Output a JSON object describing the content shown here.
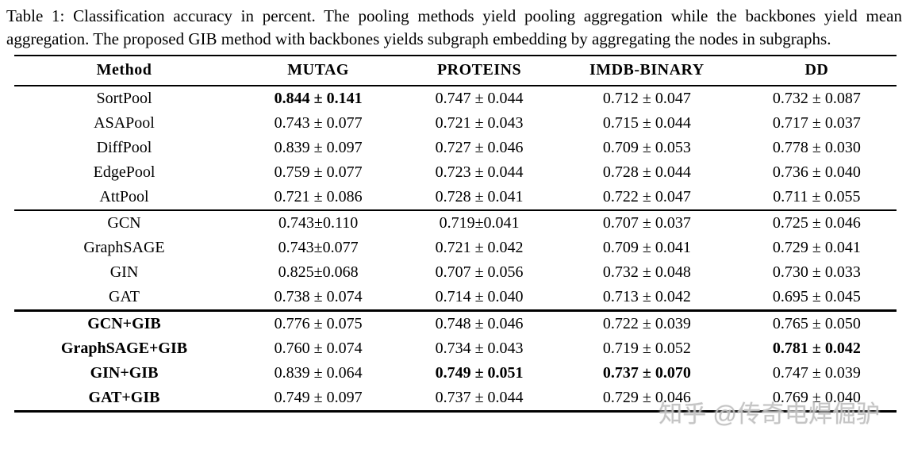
{
  "caption": {
    "label": "Table 1: ",
    "text": "Classification accuracy in percent. The pooling methods yield pooling aggregation while the backbones yield mean aggregation. The proposed GIB method with backbones yields subgraph embedding by aggregating the nodes in subgraphs."
  },
  "table": {
    "headers": [
      "Method",
      "MUTAG",
      "PROTEINS",
      "IMDB-BINARY",
      "DD"
    ],
    "groups": [
      {
        "name": "pooling-methods",
        "rows": [
          {
            "method": "SortPool",
            "method_bold": false,
            "values": [
              "0.844 ± 0.141",
              "0.747 ± 0.044",
              "0.712 ± 0.047",
              "0.732 ± 0.087"
            ],
            "bold": [
              true,
              false,
              false,
              false
            ]
          },
          {
            "method": "ASAPool",
            "method_bold": false,
            "values": [
              "0.743 ± 0.077",
              "0.721 ± 0.043",
              "0.715 ± 0.044",
              "0.717 ± 0.037"
            ],
            "bold": [
              false,
              false,
              false,
              false
            ]
          },
          {
            "method": "DiffPool",
            "method_bold": false,
            "values": [
              "0.839 ± 0.097",
              "0.727 ± 0.046",
              "0.709 ± 0.053",
              "0.778 ± 0.030"
            ],
            "bold": [
              false,
              false,
              false,
              false
            ]
          },
          {
            "method": "EdgePool",
            "method_bold": false,
            "values": [
              "0.759 ± 0.077",
              "0.723 ± 0.044",
              "0.728 ± 0.044",
              "0.736 ± 0.040"
            ],
            "bold": [
              false,
              false,
              false,
              false
            ]
          },
          {
            "method": "AttPool",
            "method_bold": false,
            "values": [
              "0.721 ± 0.086",
              "0.728 ± 0.041",
              "0.722 ± 0.047",
              "0.711 ± 0.055"
            ],
            "bold": [
              false,
              false,
              false,
              false
            ]
          }
        ]
      },
      {
        "name": "backbones",
        "rows": [
          {
            "method": "GCN",
            "method_bold": false,
            "values": [
              "0.743±0.110",
              "0.719±0.041",
              "0.707 ± 0.037",
              "0.725 ± 0.046"
            ],
            "bold": [
              false,
              false,
              false,
              false
            ]
          },
          {
            "method": "GraphSAGE",
            "method_bold": false,
            "values": [
              "0.743±0.077",
              "0.721 ± 0.042",
              "0.709 ± 0.041",
              "0.729 ± 0.041"
            ],
            "bold": [
              false,
              false,
              false,
              false
            ]
          },
          {
            "method": "GIN",
            "method_bold": false,
            "values": [
              "0.825±0.068",
              "0.707 ± 0.056",
              "0.732 ± 0.048",
              "0.730 ± 0.033"
            ],
            "bold": [
              false,
              false,
              false,
              false
            ]
          },
          {
            "method": "GAT",
            "method_bold": false,
            "values": [
              "0.738 ± 0.074",
              "0.714 ± 0.040",
              "0.713 ± 0.042",
              "0.695 ± 0.045"
            ],
            "bold": [
              false,
              false,
              false,
              false
            ]
          }
        ]
      },
      {
        "name": "gib-methods",
        "rows": [
          {
            "method": "GCN+GIB",
            "method_bold": true,
            "values": [
              "0.776 ± 0.075",
              "0.748 ± 0.046",
              "0.722 ± 0.039",
              "0.765 ± 0.050"
            ],
            "bold": [
              false,
              false,
              false,
              false
            ]
          },
          {
            "method": "GraphSAGE+GIB",
            "method_bold": true,
            "values": [
              "0.760 ± 0.074",
              "0.734 ± 0.043",
              "0.719 ± 0.052",
              "0.781 ± 0.042"
            ],
            "bold": [
              false,
              false,
              false,
              true
            ]
          },
          {
            "method": "GIN+GIB",
            "method_bold": true,
            "values": [
              "0.839 ± 0.064",
              "0.749 ± 0.051",
              "0.737 ± 0.070",
              "0.747 ± 0.039"
            ],
            "bold": [
              false,
              true,
              true,
              false
            ]
          },
          {
            "method": "GAT+GIB",
            "method_bold": true,
            "values": [
              "0.749 ± 0.097",
              "0.737 ± 0.044",
              "0.729 ± 0.046",
              "0.769 ± 0.040"
            ],
            "bold": [
              false,
              false,
              false,
              false
            ]
          }
        ]
      }
    ]
  },
  "watermark": "知乎 @传奇电焊倔驴"
}
